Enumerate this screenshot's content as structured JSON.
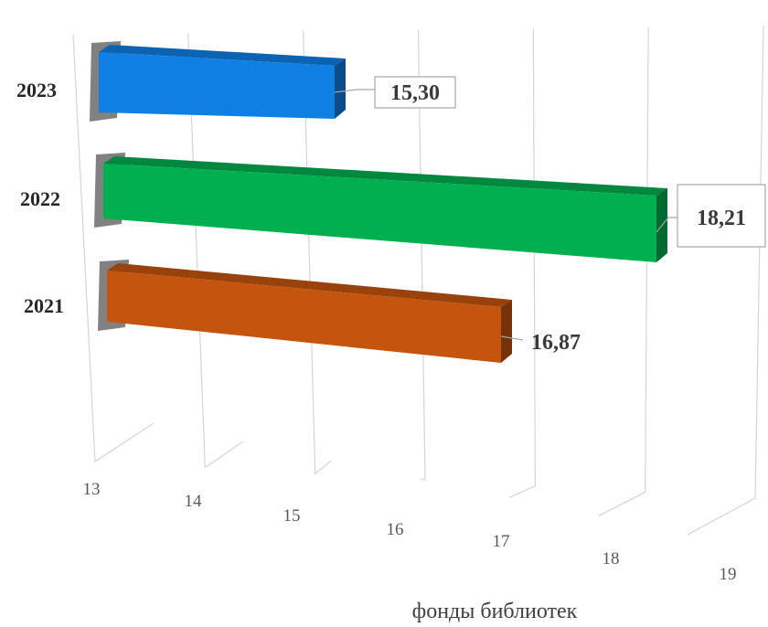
{
  "chart_data": {
    "type": "bar",
    "orientation": "horizontal",
    "style": "3d-perspective",
    "categories": [
      "2023",
      "2022",
      "2021"
    ],
    "values": [
      15.3,
      18.21,
      16.87
    ],
    "value_labels": [
      "15,30",
      "18,21",
      "16,87"
    ],
    "colors": [
      "#0f7fe4",
      "#00b050",
      "#c5540f"
    ],
    "label_boxed": [
      true,
      true,
      false
    ],
    "xlim": [
      13,
      19
    ],
    "xticks": [
      "13",
      "14",
      "15",
      "16",
      "17",
      "18",
      "19"
    ],
    "xlabel": "фонды библиотек",
    "grid": true,
    "legend": "none"
  }
}
